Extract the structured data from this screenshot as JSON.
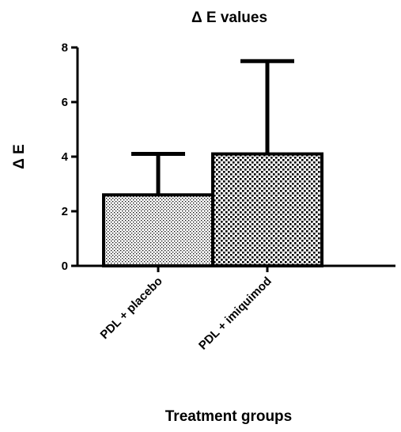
{
  "chart_data": {
    "type": "bar",
    "title": "Δ E values",
    "xlabel": "Treatment groups",
    "ylabel": "Δ E",
    "categories": [
      "PDL + placebo",
      "PDL + imiquimod"
    ],
    "series": [
      {
        "values": [
          2.6,
          4.1
        ],
        "error_upper": [
          4.1,
          7.5
        ],
        "fill_patterns": [
          "fine-dots",
          "coarse-checker"
        ]
      }
    ],
    "ylim": [
      0,
      8
    ],
    "yticks": [
      0,
      2,
      4,
      6,
      8
    ],
    "grid": false,
    "legend": "none"
  }
}
